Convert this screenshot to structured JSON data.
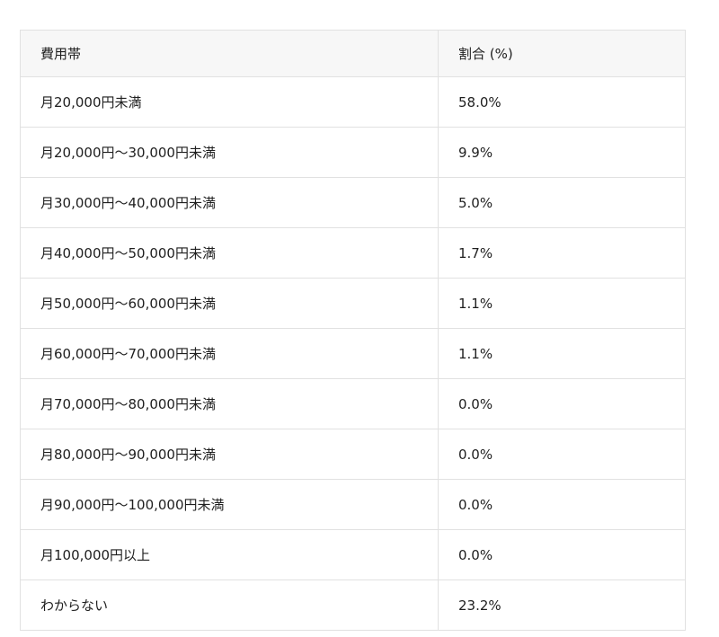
{
  "table": {
    "headers": [
      "費用帯",
      "割合 (%)"
    ],
    "rows": [
      [
        "月20,000円未満",
        "58.0%"
      ],
      [
        "月20,000円〜30,000円未満",
        "9.9%"
      ],
      [
        "月30,000円〜40,000円未満",
        "5.0%"
      ],
      [
        "月40,000円〜50,000円未満",
        "1.7%"
      ],
      [
        "月50,000円〜60,000円未満",
        "1.1%"
      ],
      [
        "月60,000円〜70,000円未満",
        "1.1%"
      ],
      [
        "月70,000円〜80,000円未満",
        "0.0%"
      ],
      [
        "月80,000円〜90,000円未満",
        "0.0%"
      ],
      [
        "月90,000円〜100,000円未満",
        "0.0%"
      ],
      [
        "月100,000円以上",
        "0.0%"
      ],
      [
        "わからない",
        "23.2%"
      ]
    ]
  },
  "chart_data": {
    "type": "table",
    "columns": [
      "費用帯",
      "割合 (%)"
    ],
    "categories": [
      "月20,000円未満",
      "月20,000円〜30,000円未満",
      "月30,000円〜40,000円未満",
      "月40,000円〜50,000円未満",
      "月50,000円〜60,000円未満",
      "月60,000円〜70,000円未満",
      "月70,000円〜80,000円未満",
      "月80,000円〜90,000円未満",
      "月90,000円〜100,000円未満",
      "月100,000円以上",
      "わからない"
    ],
    "values": [
      58.0,
      9.9,
      5.0,
      1.7,
      1.1,
      1.1,
      0.0,
      0.0,
      0.0,
      0.0,
      23.2
    ],
    "title": "",
    "xlabel": "費用帯",
    "ylabel": "割合 (%)"
  },
  "colors": {
    "header_bg": "#f7f7f7",
    "border": "#e1e1e1",
    "text": "#1f1f1f"
  }
}
